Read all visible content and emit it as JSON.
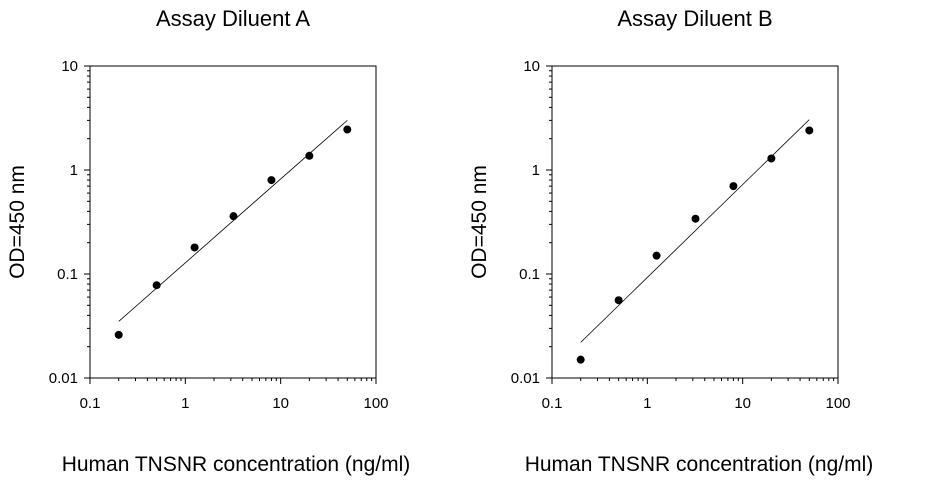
{
  "chart_data": [
    {
      "type": "scatter",
      "title": "Assay Diluent A",
      "xlabel": "Human TNSNR concentration (ng/ml)",
      "ylabel": "OD=450 nm",
      "xscale": "log",
      "yscale": "log",
      "xlim": [
        0.1,
        100
      ],
      "ylim": [
        0.01,
        10
      ],
      "xticks": [
        0.1,
        1,
        10,
        100
      ],
      "xtick_labels": [
        "0.1",
        "1",
        "10",
        "100"
      ],
      "yticks": [
        0.01,
        0.1,
        1,
        10
      ],
      "ytick_labels": [
        "0.01",
        "0.1",
        "1",
        "10"
      ],
      "grid": false,
      "points": {
        "x": [
          0.2,
          0.5,
          1.25,
          3.2,
          8,
          20,
          50
        ],
        "y": [
          0.026,
          0.078,
          0.18,
          0.36,
          0.8,
          1.37,
          2.45
        ]
      },
      "fit_line": {
        "x": [
          0.2,
          50
        ],
        "y": [
          0.035,
          3.0
        ]
      }
    },
    {
      "type": "scatter",
      "title": "Assay Diluent B",
      "xlabel": "Human TNSNR concentration (ng/ml)",
      "ylabel": "OD=450 nm",
      "xscale": "log",
      "yscale": "log",
      "xlim": [
        0.1,
        100
      ],
      "ylim": [
        0.01,
        10
      ],
      "xticks": [
        0.1,
        1,
        10,
        100
      ],
      "xtick_labels": [
        "0.1",
        "1",
        "10",
        "100"
      ],
      "yticks": [
        0.01,
        0.1,
        1,
        10
      ],
      "ytick_labels": [
        "0.01",
        "0.1",
        "1",
        "10"
      ],
      "grid": false,
      "points": {
        "x": [
          0.2,
          0.5,
          1.25,
          3.2,
          8,
          20,
          50
        ],
        "y": [
          0.015,
          0.056,
          0.15,
          0.34,
          0.7,
          1.29,
          2.4
        ]
      },
      "fit_line": {
        "x": [
          0.2,
          50
        ],
        "y": [
          0.022,
          3.05
        ]
      }
    }
  ]
}
